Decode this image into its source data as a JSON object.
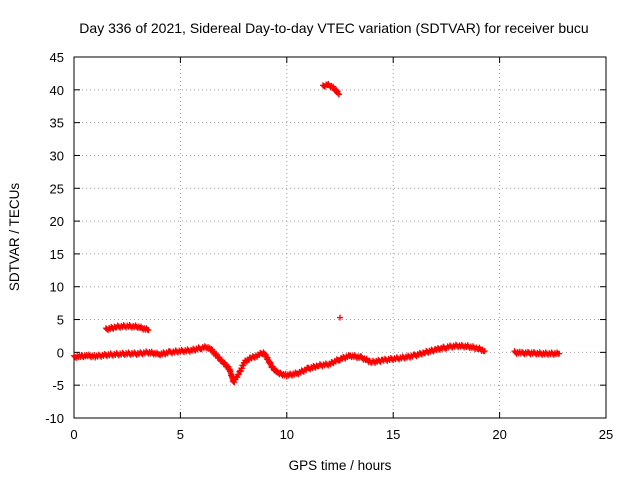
{
  "chart_data": {
    "type": "scatter",
    "title": "Day 336 of 2021, Sidereal Day-to-day VTEC variation (SDTVAR) for receiver bucu",
    "xlabel": "GPS time / hours",
    "ylabel": "SDTVAR / TECUs",
    "xlim": [
      0,
      25
    ],
    "ylim": [
      -10,
      45
    ],
    "xticks": [
      0,
      5,
      10,
      15,
      20,
      25
    ],
    "yticks": [
      -10,
      -5,
      0,
      5,
      10,
      15,
      20,
      25,
      30,
      35,
      40,
      45
    ],
    "xtick_labels": [
      "0",
      "5",
      "10",
      "15",
      "20",
      "25"
    ],
    "ytick_labels": [
      "-10",
      "-5",
      "0",
      "5",
      "10",
      "15",
      "20",
      "25",
      "30",
      "35",
      "40",
      "45"
    ],
    "grid": true,
    "marker": "+",
    "series": [
      {
        "name": "SDTVAR",
        "color": "#ff0000",
        "x": [
          0.0,
          0.3,
          0.6,
          1.0,
          1.5,
          2.0,
          2.5,
          3.0,
          3.5,
          4.0,
          4.5,
          5.0,
          5.5,
          6.0,
          6.3,
          6.5,
          6.8,
          7.0,
          7.3,
          7.5,
          7.8,
          8.0,
          8.3,
          8.6,
          8.9,
          9.1,
          9.3,
          9.6,
          10.0,
          10.5,
          11.0,
          11.5,
          12.0,
          12.5,
          13.0,
          13.5,
          14.0,
          14.5,
          15.0,
          15.5,
          16.0,
          16.5,
          17.0,
          17.5,
          18.0,
          18.5,
          19.0,
          19.3,
          1.5,
          2.0,
          2.5,
          3.0,
          3.5,
          11.7,
          11.9,
          12.1,
          12.3,
          12.45,
          12.5,
          20.7,
          21.0,
          21.5,
          22.0,
          22.5,
          22.8
        ],
        "y": [
          -0.7,
          -0.6,
          -0.5,
          -0.6,
          -0.4,
          -0.3,
          -0.2,
          -0.2,
          0.0,
          -0.3,
          0.0,
          0.2,
          0.3,
          0.7,
          0.8,
          0.2,
          -0.8,
          -1.5,
          -2.5,
          -4.5,
          -3.0,
          -1.5,
          -0.9,
          -0.5,
          0.0,
          -1.0,
          -2.2,
          -3.2,
          -3.5,
          -3.2,
          -2.5,
          -2.0,
          -1.8,
          -1.0,
          -0.5,
          -0.8,
          -1.5,
          -1.2,
          -1.0,
          -0.8,
          -0.5,
          0.0,
          0.4,
          0.8,
          1.0,
          0.9,
          0.6,
          0.2,
          3.5,
          3.9,
          4.0,
          3.9,
          3.4,
          40.5,
          40.8,
          40.5,
          40.0,
          39.3,
          5.3,
          0.0,
          -0.1,
          -0.1,
          -0.2,
          -0.2,
          -0.2
        ]
      }
    ]
  }
}
